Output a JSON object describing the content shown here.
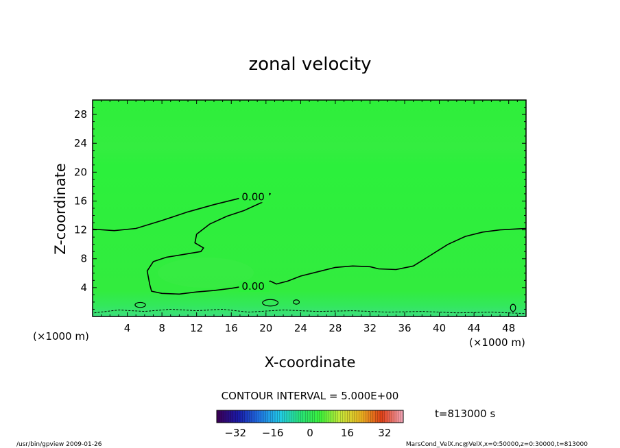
{
  "chart_data": {
    "type": "contour",
    "title": "zonal velocity",
    "xlabel": "X-coordinate",
    "ylabel": "Z-coordinate",
    "x_unit": "(×1000 m)",
    "y_unit": "(×1000 m)",
    "xlim": [
      0,
      50
    ],
    "ylim": [
      0,
      30
    ],
    "x_ticks": [
      "4",
      "8",
      "12",
      "16",
      "20",
      "24",
      "28",
      "32",
      "36",
      "40",
      "44",
      "48"
    ],
    "y_ticks": [
      "4",
      "8",
      "12",
      "16",
      "20",
      "24",
      "28"
    ],
    "contour_interval_text": "CONTOUR INTERVAL = 5.000E+00",
    "contour_labels": [
      {
        "text": "0.00",
        "x": 17.2,
        "y": 16.3
      },
      {
        "text": "0.00",
        "x": 17.2,
        "y": 3.9
      }
    ],
    "contour_line": [
      [
        0,
        12.1
      ],
      [
        2.5,
        11.9
      ],
      [
        5,
        12.2
      ],
      [
        8,
        13.3
      ],
      [
        11,
        14.5
      ],
      [
        14,
        15.5
      ],
      [
        17,
        16.4
      ],
      [
        19.8,
        17.2
      ],
      [
        20.5,
        17.0
      ],
      [
        19.5,
        15.8
      ],
      [
        17.5,
        14.7
      ],
      [
        15.5,
        13.9
      ],
      [
        13.5,
        12.8
      ],
      [
        12,
        11.4
      ],
      [
        11.8,
        10.2
      ],
      [
        12.8,
        9.5
      ],
      [
        12.5,
        9.0
      ],
      [
        10.5,
        8.6
      ],
      [
        8.5,
        8.2
      ],
      [
        7,
        7.6
      ],
      [
        6.3,
        6.3
      ],
      [
        6.6,
        4.4
      ],
      [
        6.8,
        3.5
      ],
      [
        8,
        3.2
      ],
      [
        10,
        3.1
      ],
      [
        12,
        3.4
      ],
      [
        14,
        3.6
      ],
      [
        16,
        3.9
      ],
      [
        18.5,
        4.4
      ],
      [
        20.5,
        4.9
      ],
      [
        21.2,
        4.5
      ],
      [
        22.5,
        4.9
      ],
      [
        24,
        5.6
      ],
      [
        26,
        6.2
      ],
      [
        28,
        6.8
      ],
      [
        30,
        7.0
      ],
      [
        32,
        6.9
      ],
      [
        33,
        6.6
      ],
      [
        35,
        6.5
      ],
      [
        37,
        7.0
      ],
      [
        39,
        8.5
      ],
      [
        41,
        10.0
      ],
      [
        43,
        11.1
      ],
      [
        45,
        11.7
      ],
      [
        47,
        12.0
      ],
      [
        50,
        12.2
      ]
    ],
    "colorbar": {
      "ticks": [
        "−32",
        "−16",
        "0",
        "16",
        "32"
      ],
      "tick_values": [
        -32,
        -16,
        0,
        16,
        32
      ],
      "range": [
        -40,
        40
      ],
      "colors": [
        "#3a0057",
        "#1a1aa8",
        "#1f6fe0",
        "#22c8e8",
        "#27e07a",
        "#3cf03a",
        "#c8e83a",
        "#e8b020",
        "#e04018",
        "#f0a0b0"
      ]
    },
    "time_label": "t=813000 s",
    "field_color": "#2cf03c",
    "footer_left": "/usr/bin/gpview  2009-01-26",
    "footer_right": "MarsCond_VelX.nc@VelX,x=0:50000,z=0:30000,t=813000"
  }
}
